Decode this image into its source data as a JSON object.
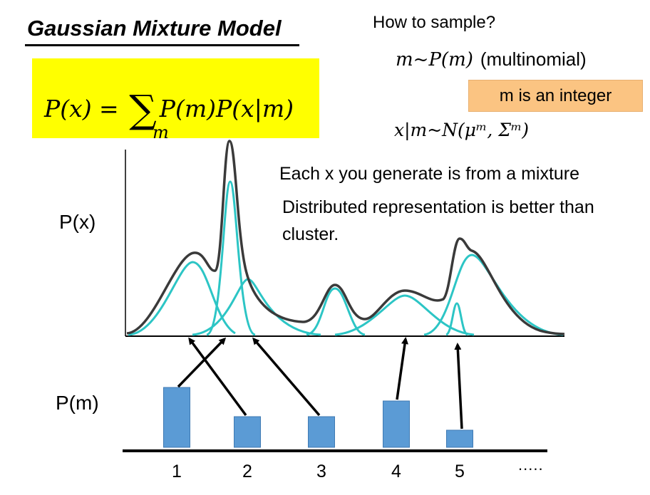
{
  "title": "Gaussian Mixture Model",
  "formula": {
    "lhs": "P(x) = ",
    "sigma": "∑",
    "sub": "m",
    "rhs": "P(m)P(x|m)"
  },
  "sampling": {
    "question": "How to sample?",
    "m_dist_math": "m~P(m)",
    "m_dist_note": "(multinomial)",
    "integer_badge": "m is an integer",
    "x_dist_math": "x|m~N(μᵐ, Σᵐ)"
  },
  "notes": {
    "line1": "Each x you generate is from a mixture",
    "line2": "Distributed representation is better than cluster."
  },
  "axes": {
    "px_label": "P(x)",
    "pm_label": "P(m)",
    "ticks": [
      "1",
      "2",
      "3",
      "4",
      "5"
    ],
    "more": "....."
  },
  "colors": {
    "bar_fill": "#5b9bd5",
    "gaussian": "#2cc5c5",
    "mixture": "#3a3a3a",
    "highlight": "#ffff00",
    "badge": "#fbc482"
  },
  "chart_data": {
    "type": "bar",
    "categories": [
      "1",
      "2",
      "3",
      "4",
      "5"
    ],
    "values": [
      84,
      43,
      43,
      65,
      24
    ],
    "ylabel": "P(m)"
  }
}
